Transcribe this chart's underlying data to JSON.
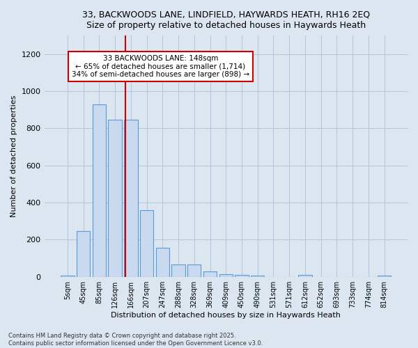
{
  "title_line1": "33, BACKWOODS LANE, LINDFIELD, HAYWARDS HEATH, RH16 2EQ",
  "title_line2": "Size of property relative to detached houses in Haywards Heath",
  "xlabel": "Distribution of detached houses by size in Haywards Heath",
  "ylabel": "Number of detached properties",
  "categories": [
    "5sqm",
    "45sqm",
    "85sqm",
    "126sqm",
    "166sqm",
    "207sqm",
    "247sqm",
    "288sqm",
    "328sqm",
    "369sqm",
    "409sqm",
    "450sqm",
    "490sqm",
    "531sqm",
    "571sqm",
    "612sqm",
    "652sqm",
    "693sqm",
    "733sqm",
    "774sqm",
    "814sqm"
  ],
  "values": [
    8,
    248,
    930,
    848,
    848,
    358,
    158,
    65,
    65,
    28,
    15,
    12,
    8,
    0,
    0,
    12,
    0,
    0,
    0,
    0,
    8
  ],
  "bar_color": "#c9d9f0",
  "bar_edge_color": "#5b9bd5",
  "vline_x": 3.65,
  "vline_color": "#cc0000",
  "annotation_line1": "33 BACKWOODS LANE: 148sqm",
  "annotation_line2": "← 65% of detached houses are smaller (1,714)",
  "annotation_line3": "34% of semi-detached houses are larger (898) →",
  "annotation_box_color": "#ffffff",
  "annotation_box_edge": "#cc0000",
  "ylim": [
    0,
    1300
  ],
  "yticks": [
    0,
    200,
    400,
    600,
    800,
    1000,
    1200
  ],
  "grid_color": "#b0c4de",
  "bg_color": "#dce6f1",
  "footer_text": "Contains HM Land Registry data © Crown copyright and database right 2025.\nContains public sector information licensed under the Open Government Licence v3.0.",
  "title_fontsize": 9,
  "xlabel_fontsize": 8,
  "ylabel_fontsize": 8,
  "tick_fontsize": 7,
  "annotation_fontsize": 7.5,
  "footer_fontsize": 6
}
